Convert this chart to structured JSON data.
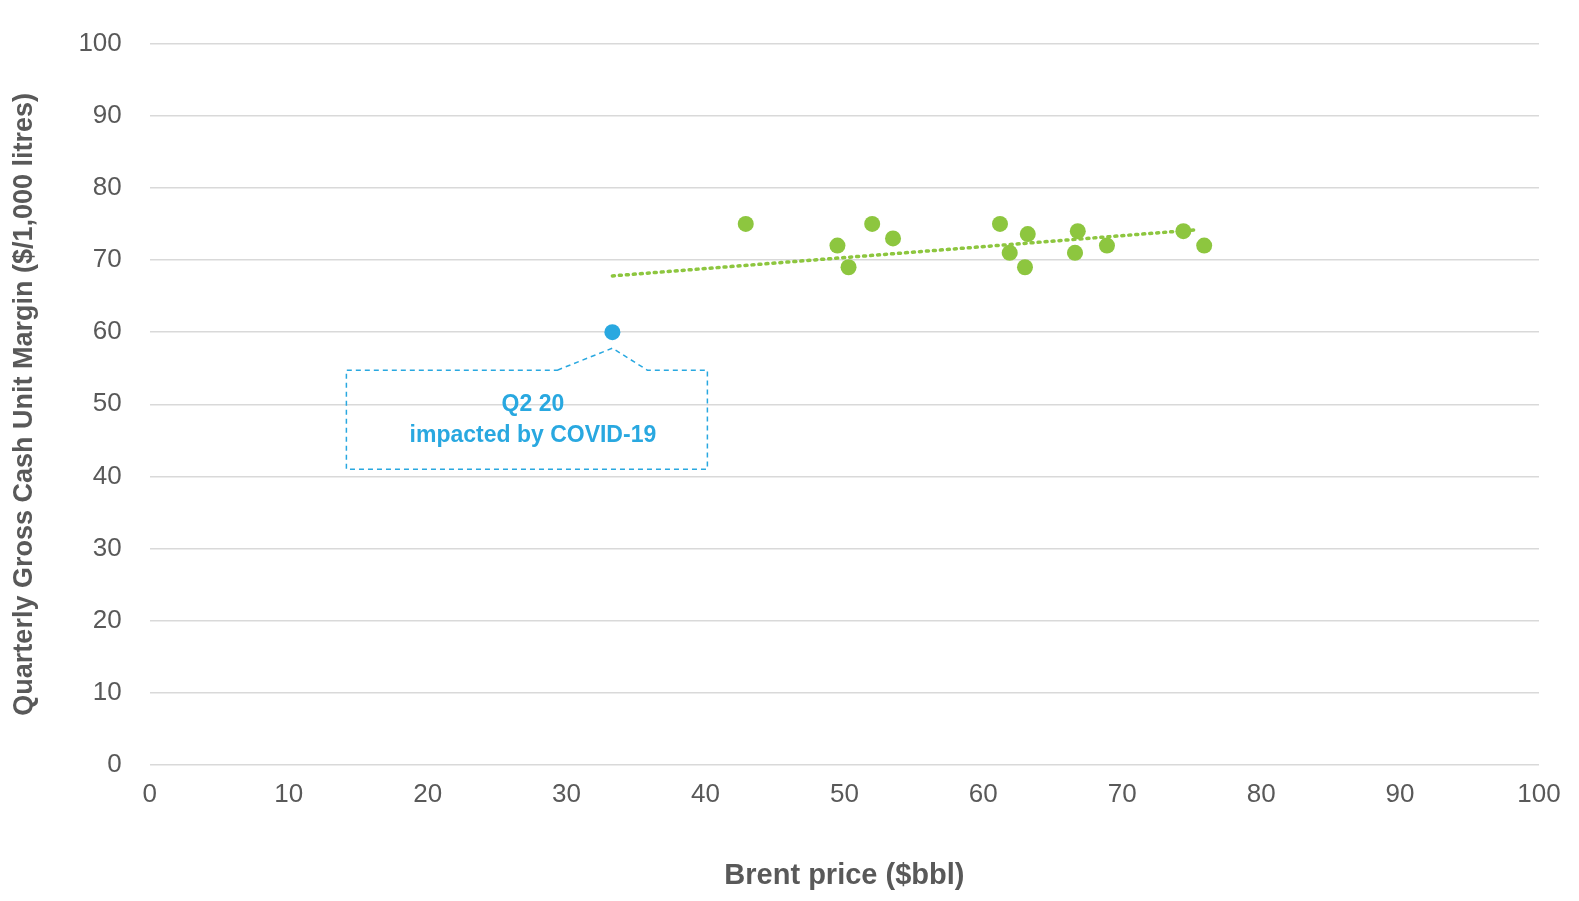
{
  "chart_data": {
    "type": "scatter",
    "xlabel": "Brent price ($bbl)",
    "ylabel": "Quarterly Gross Cash Unit Margin ($/1,000 litres)",
    "series": [
      {
        "color": "#8dc63f",
        "x": [
          42.9,
          49.5,
          50.3,
          52,
          53.5,
          61.2,
          61.9,
          63.2,
          63,
          66.8,
          66.6,
          68.9,
          74.4,
          75.9
        ],
        "values": [
          75,
          72,
          69,
          75,
          73,
          75,
          71,
          73.6,
          69,
          74,
          71,
          72,
          74,
          72
        ]
      },
      {
        "color": "#29a8e0",
        "x": [
          33.3
        ],
        "values": [
          60
        ]
      },
      {
        "type": "line",
        "color": "#8dc63f",
        "line_style": "dotted",
        "marker": "none",
        "x": [
          33.3,
          75.4
        ],
        "values": [
          67.8,
          74.2
        ]
      }
    ],
    "xlim": [
      0,
      100
    ],
    "xticks": [
      0,
      10,
      20,
      30,
      40,
      50,
      60,
      70,
      80,
      90,
      100
    ],
    "ylim": [
      0,
      100
    ],
    "yticks": [
      0,
      10,
      20,
      30,
      40,
      50,
      60,
      70,
      80,
      90,
      100
    ],
    "grid": "y",
    "legend": false,
    "marker": "circle",
    "annotations": [
      {
        "text": "Q2 20\nimpacted by COVID-19",
        "x": 33.3,
        "y": 60
      }
    ]
  }
}
